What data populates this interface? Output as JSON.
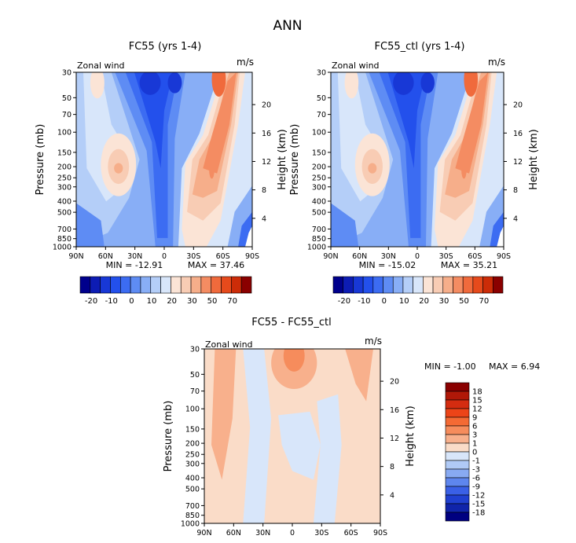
{
  "page_title": "ANN",
  "chart_data": [
    {
      "id": "panel1",
      "type": "heatmap",
      "subtype": "filled-contour",
      "title": "FC55 (yrs 1-4)",
      "field_label": "Zonal wind",
      "units": "m/s",
      "ylabel": "Pressure (mb)",
      "y2label": "Height (km)",
      "x_ticks": [
        "90N",
        "60N",
        "30N",
        "0",
        "30S",
        "60S",
        "90S"
      ],
      "y_ticks": [
        30,
        50,
        70,
        100,
        150,
        200,
        250,
        300,
        400,
        500,
        700,
        850,
        1000
      ],
      "y2_ticks": [
        4,
        8,
        12,
        16,
        20
      ],
      "min_label": "MIN = -12.91",
      "max_label": "MAX = 37.46",
      "stats": {
        "min": -12.91,
        "max": 37.46
      },
      "colorbar": {
        "labels": [
          "-20",
          "-10",
          "0",
          "10",
          "20",
          "30",
          "50",
          "70"
        ],
        "colors": [
          "#00008c",
          "#0d1cb4",
          "#1838d6",
          "#2350ec",
          "#3c6cf2",
          "#5e8cf4",
          "#88aef6",
          "#b4cef8",
          "#d8e6fa",
          "#fbe4d6",
          "#f8ccb4",
          "#f6ae8a",
          "#f48c62",
          "#f06a3c",
          "#e64a1c",
          "#cc2c08",
          "#8a0000"
        ]
      }
    },
    {
      "id": "panel2",
      "type": "heatmap",
      "subtype": "filled-contour",
      "title": "FC55_ctl (yrs 1-4)",
      "field_label": "Zonal wind",
      "units": "m/s",
      "ylabel": "Pressure (mb)",
      "y2label": "Height (km)",
      "x_ticks": [
        "90N",
        "60N",
        "30N",
        "0",
        "30S",
        "60S",
        "90S"
      ],
      "y_ticks": [
        30,
        50,
        70,
        100,
        150,
        200,
        250,
        300,
        400,
        500,
        700,
        850,
        1000
      ],
      "y2_ticks": [
        4,
        8,
        12,
        16,
        20
      ],
      "min_label": "MIN = -15.02",
      "max_label": "MAX = 35.21",
      "stats": {
        "min": -15.02,
        "max": 35.21
      },
      "colorbar": {
        "labels": [
          "-20",
          "-10",
          "0",
          "10",
          "20",
          "30",
          "50",
          "70"
        ],
        "colors": [
          "#00008c",
          "#0d1cb4",
          "#1838d6",
          "#2350ec",
          "#3c6cf2",
          "#5e8cf4",
          "#88aef6",
          "#b4cef8",
          "#d8e6fa",
          "#fbe4d6",
          "#f8ccb4",
          "#f6ae8a",
          "#f48c62",
          "#f06a3c",
          "#e64a1c",
          "#cc2c08",
          "#8a0000"
        ]
      }
    },
    {
      "id": "panel3",
      "type": "heatmap",
      "subtype": "filled-contour",
      "title": "FC55 - FC55_ctl",
      "field_label": "Zonal wind",
      "units": "m/s",
      "ylabel": "Pressure (mb)",
      "y2label": "Height (km)",
      "x_ticks": [
        "90N",
        "60N",
        "30N",
        "0",
        "30S",
        "60S",
        "90S"
      ],
      "y_ticks": [
        30,
        50,
        70,
        100,
        150,
        200,
        250,
        300,
        400,
        500,
        700,
        850,
        1000
      ],
      "y2_ticks": [
        4,
        8,
        12,
        16,
        20
      ],
      "min_label": "MIN = -1.00",
      "max_label": "MAX = 6.94",
      "stats": {
        "min": -1.0,
        "max": 6.94
      },
      "colorbar": {
        "labels": [
          "18",
          "15",
          "12",
          "9",
          "6",
          "3",
          "1",
          "0",
          "-1",
          "-3",
          "-6",
          "-9",
          "-12",
          "-15",
          "-18"
        ],
        "colors": [
          "#8a0000",
          "#b01808",
          "#d42c10",
          "#ec4418",
          "#f46a34",
          "#f68c5c",
          "#f8b08c",
          "#fadcc8",
          "#d8e6fa",
          "#b0caf6",
          "#88aaf2",
          "#5e86ee",
          "#3a60e6",
          "#2040d0",
          "#1024aa",
          "#000080"
        ]
      }
    }
  ]
}
